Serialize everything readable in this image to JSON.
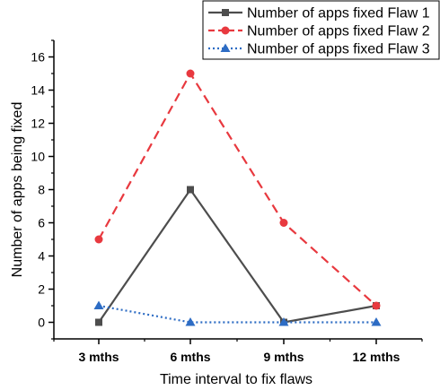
{
  "chart_data": {
    "type": "line",
    "categories": [
      "3 mths",
      "6 mths",
      "9 mths",
      "12 mths"
    ],
    "xlabel": "Time interval to fix flaws",
    "ylabel": "Number of apps being fixed",
    "ylim": [
      -1,
      17
    ],
    "yticks": [
      0,
      2,
      4,
      6,
      8,
      10,
      12,
      14,
      16
    ],
    "grid": false,
    "legend_position": "top-right",
    "series": [
      {
        "name": "Number of apps fixed Flaw 1",
        "values": [
          0,
          8,
          0,
          1
        ],
        "color": "#4d4d4d",
        "line": "solid",
        "marker": "square"
      },
      {
        "name": "Number of apps fixed Flaw 2",
        "values": [
          5,
          15,
          6,
          1
        ],
        "color": "#e8393f",
        "line": "dashed",
        "marker": "circle"
      },
      {
        "name": "Number of apps fixed Flaw 3",
        "values": [
          1,
          0,
          0,
          0
        ],
        "color": "#2d6cc4",
        "line": "dotted",
        "marker": "triangle"
      }
    ]
  }
}
